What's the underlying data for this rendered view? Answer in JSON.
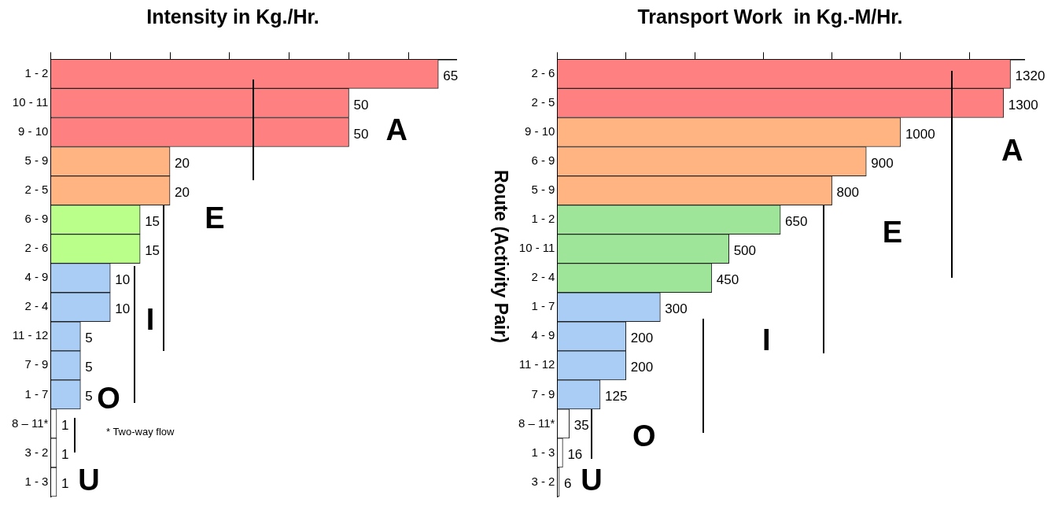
{
  "chart_data": [
    {
      "type": "bar",
      "orientation": "horizontal",
      "title": "Intensity in Kg./Hr.",
      "categories": [
        "1 - 2",
        "10 - 11",
        "9 - 10",
        "5 - 9",
        "2 - 5",
        "6 - 9",
        "2 - 6",
        "4 - 9",
        "2 - 4",
        "11 - 12",
        "7 - 9",
        "1 - 7",
        "8 – 11*",
        "3 - 2",
        "1 - 3"
      ],
      "values": [
        65,
        50,
        50,
        20,
        20,
        15,
        15,
        10,
        10,
        5,
        5,
        5,
        1,
        1,
        1
      ],
      "colors": [
        "#ff8080",
        "#ff8080",
        "#ff8080",
        "#ffb482",
        "#ffb482",
        "#b9ff8a",
        "#b9ff8a",
        "#a9cdf5",
        "#a9cdf5",
        "#a9cdf5",
        "#a9cdf5",
        "#a9cdf5",
        "#ffffff",
        "#ffffff",
        "#ffffff"
      ],
      "xlim": [
        0,
        68
      ],
      "xticks": [
        {
          "value": 0,
          "label": null
        },
        {
          "value": 10,
          "label": null
        },
        {
          "value": 20,
          "label": null
        },
        {
          "value": 30,
          "label": null
        },
        {
          "value": 40,
          "label": null
        },
        {
          "value": 50,
          "label": null
        },
        {
          "value": 60,
          "label": null
        }
      ],
      "tick_labels": "y",
      "data_labels": true,
      "annotations": [
        "A",
        "E",
        "I",
        "O",
        "U",
        "* Two-way flow"
      ]
    },
    {
      "type": "bar",
      "orientation": "horizontal",
      "title": "Transport Work  in Kg.-M/Hr.",
      "ylabel": "Route (Activity Pair)",
      "categories": [
        "2 - 6",
        "2 - 5",
        "9 - 10",
        "6 - 9",
        "5 - 9",
        "1 - 2",
        "10 - 11",
        "2 - 4",
        "1 - 7",
        "4 - 9",
        "11 - 12",
        "7 - 9",
        "8 – 11*",
        "1 - 3",
        "3 - 2"
      ],
      "values": [
        1320,
        1300,
        1000,
        900,
        800,
        650,
        500,
        450,
        300,
        200,
        200,
        125,
        35,
        16,
        6
      ],
      "colors": [
        "#ff8080",
        "#ff8080",
        "#ffb482",
        "#ffb482",
        "#ffb482",
        "#9ee59a",
        "#9ee59a",
        "#9ee59a",
        "#a9cdf5",
        "#a9cdf5",
        "#a9cdf5",
        "#a9cdf5",
        "#ffffff",
        "#ffffff",
        "#ffffff"
      ],
      "xlim": [
        0,
        1360
      ],
      "xticks": [
        {
          "value": 0,
          "label": null
        },
        {
          "value": 200,
          "label": null
        },
        {
          "value": 400,
          "label": null
        },
        {
          "value": 600,
          "label": null
        },
        {
          "value": 800,
          "label": null
        },
        {
          "value": 1000,
          "label": null
        },
        {
          "value": 1200,
          "label": null
        }
      ],
      "tick_labels": "y",
      "data_labels": true,
      "annotations": [
        "A",
        "E",
        "I",
        "O",
        "U"
      ]
    }
  ]
}
